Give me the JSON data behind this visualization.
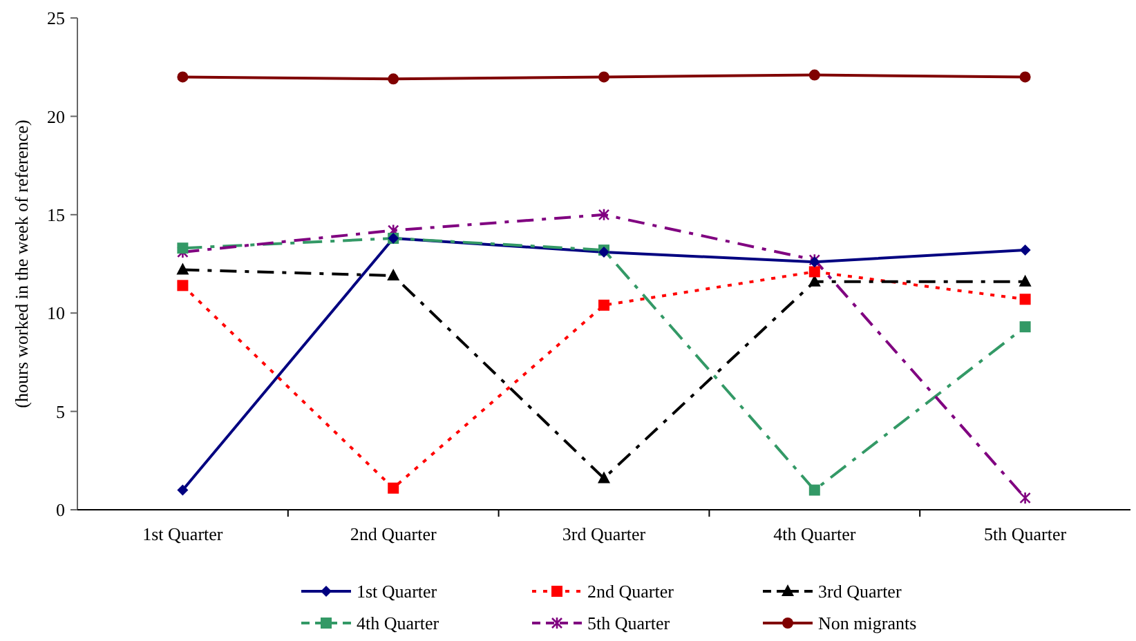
{
  "chart_data": {
    "type": "line",
    "ylabel": "(hours worked in the week of reference)",
    "categories": [
      "1st Quarter",
      "2nd Quarter",
      "3rd Quarter",
      "4th Quarter",
      "5th Quarter"
    ],
    "ylim": [
      0,
      25
    ],
    "yticks": [
      0,
      5,
      10,
      15,
      20,
      25
    ],
    "grid": false,
    "legend": "bottom",
    "series": [
      {
        "name": "1st Quarter",
        "color": "#000080",
        "marker": "diamond",
        "line_style": "solid",
        "values": [
          1.0,
          13.8,
          13.1,
          12.6,
          13.2
        ]
      },
      {
        "name": "2nd Quarter",
        "color": "#ff0000",
        "marker": "square",
        "line_style": "dotted",
        "values": [
          11.4,
          1.1,
          10.4,
          12.1,
          10.7
        ]
      },
      {
        "name": "3rd Quarter",
        "color": "#000000",
        "marker": "triangle",
        "line_style": "dashed",
        "values": [
          12.2,
          11.9,
          1.6,
          11.6,
          11.6
        ]
      },
      {
        "name": "4th Quarter",
        "color": "#339966",
        "marker": "square",
        "line_style": "dashed",
        "values": [
          13.3,
          13.8,
          13.2,
          1.0,
          9.3
        ]
      },
      {
        "name": "5th Quarter",
        "color": "#800080",
        "marker": "cross",
        "line_style": "dashed",
        "values": [
          13.1,
          14.2,
          15.0,
          12.7,
          0.6
        ]
      },
      {
        "name": "Non migrants",
        "color": "#800000",
        "marker": "circle",
        "line_style": "solid",
        "values": [
          22.0,
          21.9,
          22.0,
          22.1,
          22.0
        ]
      }
    ]
  }
}
